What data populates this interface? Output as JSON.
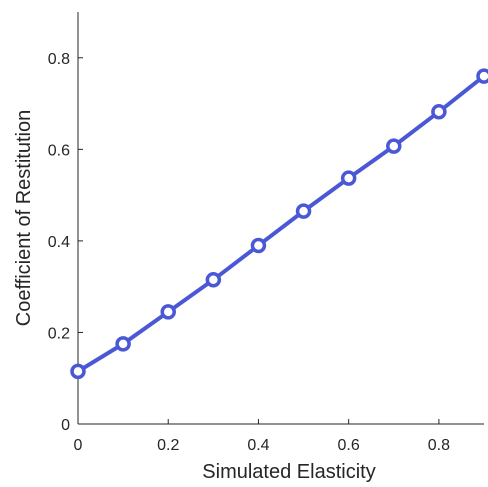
{
  "chart_data": {
    "type": "line",
    "title": "",
    "xlabel": "Simulated Elasticity",
    "ylabel": "Coefficient of Restitution",
    "xlim": [
      0,
      0.9
    ],
    "ylim": [
      0,
      0.9
    ],
    "xticks": [
      "0",
      "0.2",
      "0.4",
      "0.6",
      "0.8"
    ],
    "xtick_values": [
      0,
      0.2,
      0.4,
      0.6,
      0.8
    ],
    "yticks": [
      "0",
      "0.2",
      "0.4",
      "0.6",
      "0.8"
    ],
    "ytick_values": [
      0,
      0.2,
      0.4,
      0.6,
      0.8
    ],
    "grid": false,
    "legend": "none",
    "series": [
      {
        "color": "#4b58d6",
        "marker": "open-circle",
        "x": [
          0,
          0.1,
          0.2,
          0.3,
          0.4,
          0.5,
          0.6,
          0.7,
          0.8,
          0.9
        ],
        "y": [
          0.115,
          0.175,
          0.245,
          0.315,
          0.39,
          0.465,
          0.537,
          0.607,
          0.682,
          0.76
        ]
      }
    ]
  }
}
